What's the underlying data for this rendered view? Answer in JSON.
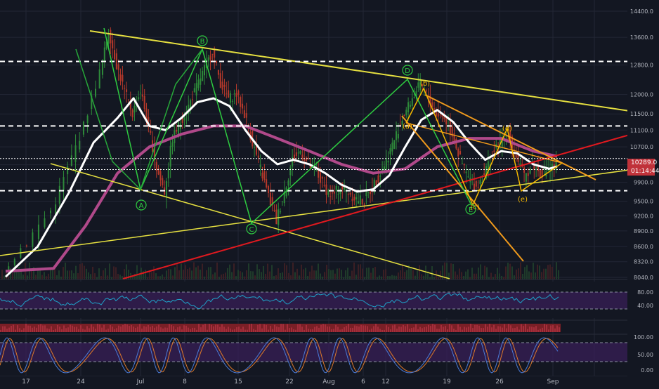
{
  "colors": {
    "background": "#131722",
    "grid": "#232735",
    "candle_up": "#2e8b3a",
    "candle_down": "#b5392b",
    "white_ma": "#ffffff",
    "pink_ma": "#b0498a",
    "trendline_yellow": "#e6e040",
    "trendline_red": "#e0191f",
    "trendline_orange": "#f09a1c",
    "wave_green": "#2ecc40",
    "wave_orange": "#f5b800",
    "rsi_line": "#1fa2c8",
    "rsi_band": "#3a1f5a",
    "stoch_k": "#4b7bd8",
    "stoch_d": "#e07a2a",
    "price_badge": "#c0323a",
    "time_badge": "#c0323a",
    "axis_text": "#b2b5be"
  },
  "badges": {
    "last_price": "10289.0",
    "countdown": "01:14:44"
  },
  "chart_data": {
    "type": "candlestick",
    "title": "",
    "xlabel": "",
    "ylabel": "",
    "x_ticks": [
      "17",
      "24",
      "Jul",
      "8",
      "15",
      "22",
      "Aug",
      "6",
      "12",
      "19",
      "26",
      "Sep"
    ],
    "y_ticks": [
      14400,
      13600,
      12800,
      12000,
      11500,
      11100,
      10700,
      10289,
      9900,
      9500,
      9200,
      8900,
      8600,
      8320,
      8040
    ],
    "ylim": [
      8040,
      14400
    ],
    "scale": "log",
    "horizontal_levels": [
      12900,
      11200,
      10430,
      10180,
      9720
    ],
    "wave_labels": {
      "abcd": [
        "A",
        "B",
        "C",
        "D",
        "E"
      ],
      "triangle": [
        "(a)",
        "(b)",
        "(c)",
        "(d)",
        "(e)"
      ]
    },
    "price_path": [
      {
        "day": 0,
        "price": 8200
      },
      {
        "day": 3,
        "price": 8700
      },
      {
        "day": 6,
        "price": 9300
      },
      {
        "day": 8,
        "price": 10200
      },
      {
        "day": 10,
        "price": 11200
      },
      {
        "day": 12,
        "price": 12600
      },
      {
        "day": 13,
        "price": 13800
      },
      {
        "day": 14,
        "price": 12800
      },
      {
        "day": 15,
        "price": 12100
      },
      {
        "day": 16,
        "price": 11500
      },
      {
        "day": 17,
        "price": 12100
      },
      {
        "day": 18,
        "price": 11200
      },
      {
        "day": 19,
        "price": 10200
      },
      {
        "day": 20,
        "price": 9700
      },
      {
        "day": 21,
        "price": 10900
      },
      {
        "day": 22,
        "price": 11300
      },
      {
        "day": 23,
        "price": 11700
      },
      {
        "day": 24,
        "price": 12200
      },
      {
        "day": 25,
        "price": 12700
      },
      {
        "day": 26,
        "price": 13200
      },
      {
        "day": 27,
        "price": 12300
      },
      {
        "day": 28,
        "price": 11900
      },
      {
        "day": 29,
        "price": 12000
      },
      {
        "day": 30,
        "price": 11500
      },
      {
        "day": 31,
        "price": 10800
      },
      {
        "day": 32,
        "price": 10200
      },
      {
        "day": 33,
        "price": 9600
      },
      {
        "day": 34,
        "price": 9100
      },
      {
        "day": 35,
        "price": 9700
      },
      {
        "day": 36,
        "price": 10400
      },
      {
        "day": 37,
        "price": 10600
      },
      {
        "day": 38,
        "price": 10300
      },
      {
        "day": 39,
        "price": 10100
      },
      {
        "day": 40,
        "price": 9800
      },
      {
        "day": 41,
        "price": 9600
      },
      {
        "day": 42,
        "price": 9800
      },
      {
        "day": 43,
        "price": 9700
      },
      {
        "day": 44,
        "price": 9550
      },
      {
        "day": 45,
        "price": 9500
      },
      {
        "day": 46,
        "price": 9800
      },
      {
        "day": 47,
        "price": 10100
      },
      {
        "day": 48,
        "price": 10500
      },
      {
        "day": 49,
        "price": 11000
      },
      {
        "day": 50,
        "price": 11500
      },
      {
        "day": 51,
        "price": 11900
      },
      {
        "day": 52,
        "price": 12300
      },
      {
        "day": 53,
        "price": 11900
      },
      {
        "day": 54,
        "price": 11500
      },
      {
        "day": 55,
        "price": 11400
      },
      {
        "day": 56,
        "price": 11000
      },
      {
        "day": 57,
        "price": 10400
      },
      {
        "day": 58,
        "price": 10000
      },
      {
        "day": 59,
        "price": 9800
      },
      {
        "day": 60,
        "price": 10100
      },
      {
        "day": 61,
        "price": 10500
      },
      {
        "day": 62,
        "price": 10800
      },
      {
        "day": 63,
        "price": 11000
      },
      {
        "day": 64,
        "price": 10500
      },
      {
        "day": 65,
        "price": 10000
      },
      {
        "day": 66,
        "price": 10300
      },
      {
        "day": 67,
        "price": 10100
      },
      {
        "day": 68,
        "price": 10200
      },
      {
        "day": 69,
        "price": 10289
      }
    ],
    "white_ma": [
      {
        "day": 0,
        "price": 8050
      },
      {
        "day": 4,
        "price": 8600
      },
      {
        "day": 8,
        "price": 9700
      },
      {
        "day": 11,
        "price": 10800
      },
      {
        "day": 14,
        "price": 11400
      },
      {
        "day": 16,
        "price": 11900
      },
      {
        "day": 18,
        "price": 11200
      },
      {
        "day": 20,
        "price": 11100
      },
      {
        "day": 22,
        "price": 11400
      },
      {
        "day": 24,
        "price": 11800
      },
      {
        "day": 26,
        "price": 11900
      },
      {
        "day": 28,
        "price": 11700
      },
      {
        "day": 30,
        "price": 11100
      },
      {
        "day": 32,
        "price": 10600
      },
      {
        "day": 34,
        "price": 10300
      },
      {
        "day": 36,
        "price": 10400
      },
      {
        "day": 38,
        "price": 10300
      },
      {
        "day": 40,
        "price": 10100
      },
      {
        "day": 42,
        "price": 9850
      },
      {
        "day": 44,
        "price": 9700
      },
      {
        "day": 46,
        "price": 9750
      },
      {
        "day": 48,
        "price": 10050
      },
      {
        "day": 50,
        "price": 10700
      },
      {
        "day": 52,
        "price": 11350
      },
      {
        "day": 54,
        "price": 11600
      },
      {
        "day": 56,
        "price": 11300
      },
      {
        "day": 58,
        "price": 10800
      },
      {
        "day": 60,
        "price": 10400
      },
      {
        "day": 62,
        "price": 10600
      },
      {
        "day": 64,
        "price": 10550
      },
      {
        "day": 66,
        "price": 10300
      },
      {
        "day": 68,
        "price": 10200
      },
      {
        "day": 69,
        "price": 10250
      }
    ],
    "pink_ma": [
      {
        "day": 0,
        "price": 8150
      },
      {
        "day": 6,
        "price": 8200
      },
      {
        "day": 10,
        "price": 9000
      },
      {
        "day": 14,
        "price": 10100
      },
      {
        "day": 18,
        "price": 10700
      },
      {
        "day": 22,
        "price": 11000
      },
      {
        "day": 26,
        "price": 11200
      },
      {
        "day": 30,
        "price": 11200
      },
      {
        "day": 34,
        "price": 10900
      },
      {
        "day": 38,
        "price": 10600
      },
      {
        "day": 42,
        "price": 10300
      },
      {
        "day": 46,
        "price": 10100
      },
      {
        "day": 50,
        "price": 10200
      },
      {
        "day": 54,
        "price": 10700
      },
      {
        "day": 58,
        "price": 10900
      },
      {
        "day": 62,
        "price": 10900
      },
      {
        "day": 66,
        "price": 10600
      },
      {
        "day": 69,
        "price": 10480
      }
    ],
    "rsi_ticks": [
      80.0,
      40.0
    ],
    "stoch_ticks": [
      100.0,
      50.0,
      0.0
    ]
  }
}
